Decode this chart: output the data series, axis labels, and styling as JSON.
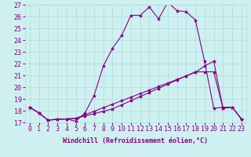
{
  "xlabel": "Windchill (Refroidissement éolien,°C)",
  "bg_color": "#cff0f0",
  "line_color": "#880088",
  "x_values": [
    0,
    1,
    2,
    3,
    4,
    5,
    6,
    7,
    8,
    9,
    10,
    11,
    12,
    13,
    14,
    15,
    16,
    17,
    18,
    19,
    20,
    21,
    22,
    23
  ],
  "line1": [
    18.3,
    17.8,
    17.2,
    17.3,
    17.3,
    17.1,
    17.8,
    19.3,
    21.8,
    23.3,
    24.4,
    26.1,
    26.1,
    26.8,
    25.8,
    27.2,
    26.5,
    26.4,
    25.7,
    22.2,
    18.2,
    18.3,
    18.3,
    17.3
  ],
  "line2": [
    18.3,
    17.8,
    17.2,
    17.25,
    17.3,
    17.35,
    17.55,
    17.75,
    17.95,
    18.15,
    18.5,
    18.85,
    19.2,
    19.55,
    19.9,
    20.25,
    20.6,
    20.95,
    21.3,
    21.3,
    21.3,
    18.2,
    18.3,
    17.3
  ],
  "line3": [
    18.3,
    17.8,
    17.2,
    17.25,
    17.3,
    17.35,
    17.65,
    17.95,
    18.25,
    18.55,
    18.85,
    19.15,
    19.45,
    19.75,
    20.05,
    20.35,
    20.65,
    20.95,
    21.25,
    21.8,
    22.2,
    18.2,
    18.3,
    17.3
  ],
  "ylim": [
    17,
    27
  ],
  "xlim": [
    -0.5,
    23.5
  ],
  "yticks": [
    17,
    18,
    19,
    20,
    21,
    22,
    23,
    24,
    25,
    26,
    27
  ],
  "xticks": [
    0,
    1,
    2,
    3,
    4,
    5,
    6,
    7,
    8,
    9,
    10,
    11,
    12,
    13,
    14,
    15,
    16,
    17,
    18,
    19,
    20,
    21,
    22,
    23
  ],
  "marker": "*",
  "markersize": 3,
  "linewidth": 0.8,
  "font_color": "#880088",
  "grid_color": "#aadddd",
  "xlabel_fontsize": 6,
  "tick_fontsize": 6
}
